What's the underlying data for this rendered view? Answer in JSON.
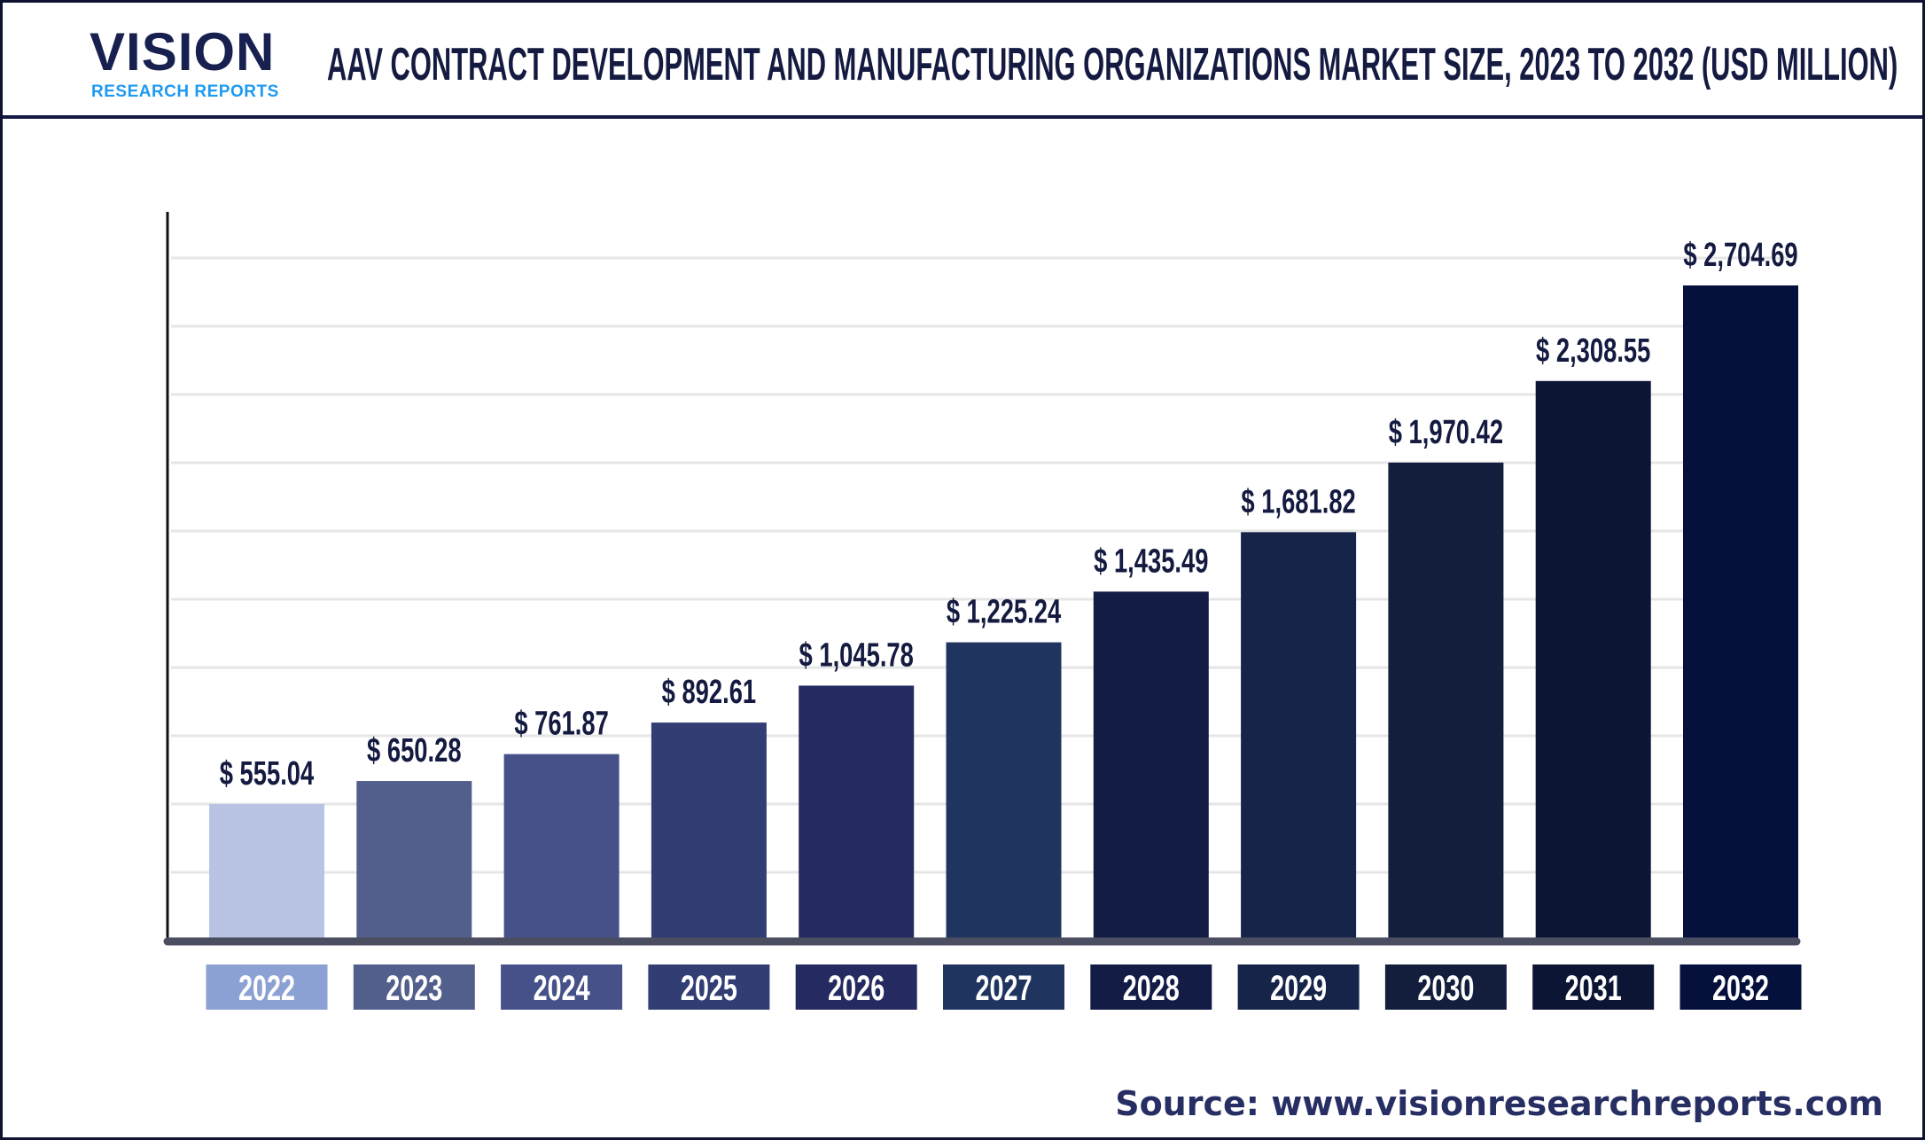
{
  "header": {
    "logo": {
      "word": "VISION",
      "sub": "RESEARCH REPORTS"
    },
    "title": "AAV CONTRACT DEVELOPMENT AND MANUFACTURING ORGANIZATIONS MARKET SIZE, 2023 TO 2032 (USD MILLION)"
  },
  "chart_data": {
    "type": "bar",
    "title": "AAV CONTRACT DEVELOPMENT AND MANUFACTURING ORGANIZATIONS MARKET SIZE, 2023 TO 2032 (USD MILLION)",
    "categories": [
      "2022",
      "2023",
      "2024",
      "2025",
      "2026",
      "2027",
      "2028",
      "2029",
      "2030",
      "2031",
      "2032"
    ],
    "values": [
      555.04,
      650.28,
      761.87,
      892.61,
      1045.78,
      1225.24,
      1435.49,
      1681.82,
      1970.42,
      2308.55,
      2704.69
    ],
    "labels": [
      "$ 555.04",
      "$ 650.28",
      "$ 761.87",
      "$ 892.61",
      "$ 1,045.78",
      "$ 1,225.24",
      "$ 1,435.49",
      "$ 1,681.82",
      "$ 1,970.42",
      "$ 2,308.55",
      "$ 2,704.69"
    ],
    "bar_colors": [
      "#b9c3e3",
      "#525f8c",
      "#465189",
      "#323d73",
      "#252b60",
      "#1f3560",
      "#121c45",
      "#16244a",
      "#121e3c",
      "#0c1534",
      "#05103d"
    ],
    "label_box_colors": [
      "#8ca1d3",
      "#525f8c",
      "#465189",
      "#323d73",
      "#252b60",
      "#1f3560",
      "#121c45",
      "#16244a",
      "#121e3c",
      "#0c1534",
      "#05103d"
    ],
    "xlabel": "",
    "ylabel": "",
    "grid": true,
    "legend": "none"
  },
  "source": "Source: www.visionresearchreports.com"
}
